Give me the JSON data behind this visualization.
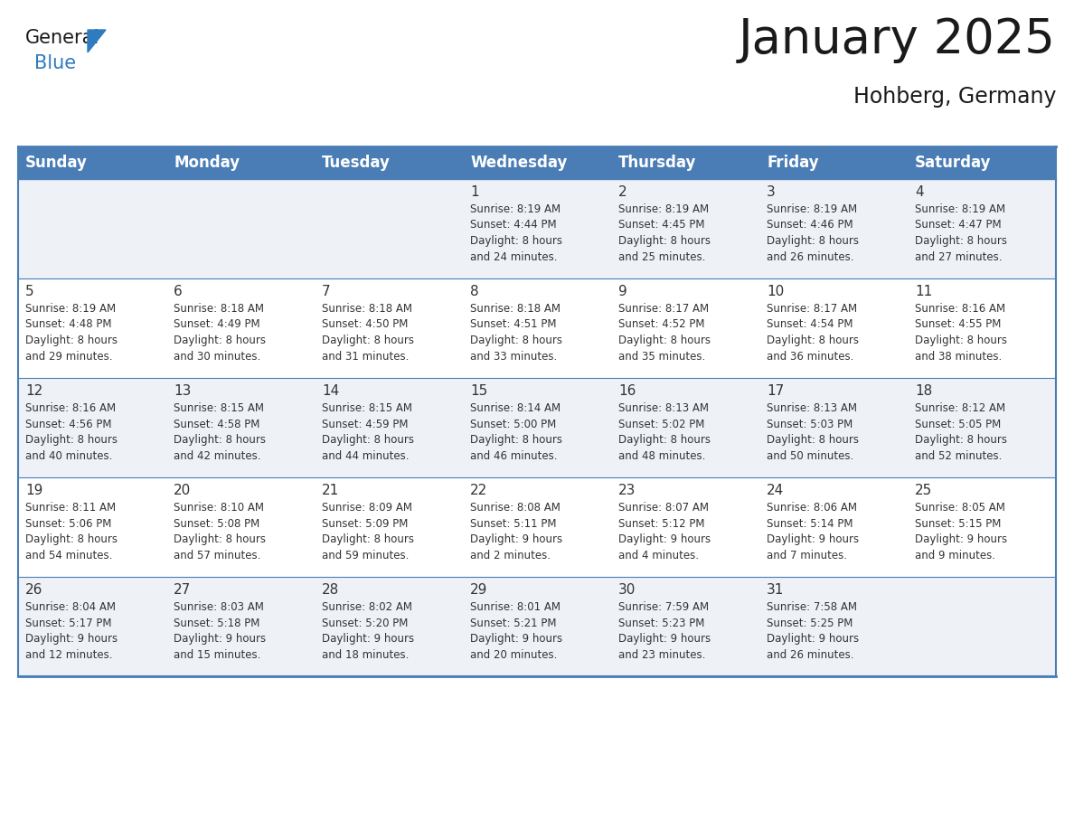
{
  "title": "January 2025",
  "subtitle": "Hohberg, Germany",
  "header_bg": "#4a7db5",
  "header_text_color": "#ffffff",
  "cell_bg_odd": "#eef2f7",
  "cell_bg_even": "#ffffff",
  "border_color": "#4a7db5",
  "text_color": "#333333",
  "days_of_week": [
    "Sunday",
    "Monday",
    "Tuesday",
    "Wednesday",
    "Thursday",
    "Friday",
    "Saturday"
  ],
  "calendar_data": [
    [
      {
        "day": "",
        "info": ""
      },
      {
        "day": "",
        "info": ""
      },
      {
        "day": "",
        "info": ""
      },
      {
        "day": "1",
        "info": "Sunrise: 8:19 AM\nSunset: 4:44 PM\nDaylight: 8 hours\nand 24 minutes."
      },
      {
        "day": "2",
        "info": "Sunrise: 8:19 AM\nSunset: 4:45 PM\nDaylight: 8 hours\nand 25 minutes."
      },
      {
        "day": "3",
        "info": "Sunrise: 8:19 AM\nSunset: 4:46 PM\nDaylight: 8 hours\nand 26 minutes."
      },
      {
        "day": "4",
        "info": "Sunrise: 8:19 AM\nSunset: 4:47 PM\nDaylight: 8 hours\nand 27 minutes."
      }
    ],
    [
      {
        "day": "5",
        "info": "Sunrise: 8:19 AM\nSunset: 4:48 PM\nDaylight: 8 hours\nand 29 minutes."
      },
      {
        "day": "6",
        "info": "Sunrise: 8:18 AM\nSunset: 4:49 PM\nDaylight: 8 hours\nand 30 minutes."
      },
      {
        "day": "7",
        "info": "Sunrise: 8:18 AM\nSunset: 4:50 PM\nDaylight: 8 hours\nand 31 minutes."
      },
      {
        "day": "8",
        "info": "Sunrise: 8:18 AM\nSunset: 4:51 PM\nDaylight: 8 hours\nand 33 minutes."
      },
      {
        "day": "9",
        "info": "Sunrise: 8:17 AM\nSunset: 4:52 PM\nDaylight: 8 hours\nand 35 minutes."
      },
      {
        "day": "10",
        "info": "Sunrise: 8:17 AM\nSunset: 4:54 PM\nDaylight: 8 hours\nand 36 minutes."
      },
      {
        "day": "11",
        "info": "Sunrise: 8:16 AM\nSunset: 4:55 PM\nDaylight: 8 hours\nand 38 minutes."
      }
    ],
    [
      {
        "day": "12",
        "info": "Sunrise: 8:16 AM\nSunset: 4:56 PM\nDaylight: 8 hours\nand 40 minutes."
      },
      {
        "day": "13",
        "info": "Sunrise: 8:15 AM\nSunset: 4:58 PM\nDaylight: 8 hours\nand 42 minutes."
      },
      {
        "day": "14",
        "info": "Sunrise: 8:15 AM\nSunset: 4:59 PM\nDaylight: 8 hours\nand 44 minutes."
      },
      {
        "day": "15",
        "info": "Sunrise: 8:14 AM\nSunset: 5:00 PM\nDaylight: 8 hours\nand 46 minutes."
      },
      {
        "day": "16",
        "info": "Sunrise: 8:13 AM\nSunset: 5:02 PM\nDaylight: 8 hours\nand 48 minutes."
      },
      {
        "day": "17",
        "info": "Sunrise: 8:13 AM\nSunset: 5:03 PM\nDaylight: 8 hours\nand 50 minutes."
      },
      {
        "day": "18",
        "info": "Sunrise: 8:12 AM\nSunset: 5:05 PM\nDaylight: 8 hours\nand 52 minutes."
      }
    ],
    [
      {
        "day": "19",
        "info": "Sunrise: 8:11 AM\nSunset: 5:06 PM\nDaylight: 8 hours\nand 54 minutes."
      },
      {
        "day": "20",
        "info": "Sunrise: 8:10 AM\nSunset: 5:08 PM\nDaylight: 8 hours\nand 57 minutes."
      },
      {
        "day": "21",
        "info": "Sunrise: 8:09 AM\nSunset: 5:09 PM\nDaylight: 8 hours\nand 59 minutes."
      },
      {
        "day": "22",
        "info": "Sunrise: 8:08 AM\nSunset: 5:11 PM\nDaylight: 9 hours\nand 2 minutes."
      },
      {
        "day": "23",
        "info": "Sunrise: 8:07 AM\nSunset: 5:12 PM\nDaylight: 9 hours\nand 4 minutes."
      },
      {
        "day": "24",
        "info": "Sunrise: 8:06 AM\nSunset: 5:14 PM\nDaylight: 9 hours\nand 7 minutes."
      },
      {
        "day": "25",
        "info": "Sunrise: 8:05 AM\nSunset: 5:15 PM\nDaylight: 9 hours\nand 9 minutes."
      }
    ],
    [
      {
        "day": "26",
        "info": "Sunrise: 8:04 AM\nSunset: 5:17 PM\nDaylight: 9 hours\nand 12 minutes."
      },
      {
        "day": "27",
        "info": "Sunrise: 8:03 AM\nSunset: 5:18 PM\nDaylight: 9 hours\nand 15 minutes."
      },
      {
        "day": "28",
        "info": "Sunrise: 8:02 AM\nSunset: 5:20 PM\nDaylight: 9 hours\nand 18 minutes."
      },
      {
        "day": "29",
        "info": "Sunrise: 8:01 AM\nSunset: 5:21 PM\nDaylight: 9 hours\nand 20 minutes."
      },
      {
        "day": "30",
        "info": "Sunrise: 7:59 AM\nSunset: 5:23 PM\nDaylight: 9 hours\nand 23 minutes."
      },
      {
        "day": "31",
        "info": "Sunrise: 7:58 AM\nSunset: 5:25 PM\nDaylight: 9 hours\nand 26 minutes."
      },
      {
        "day": "",
        "info": ""
      }
    ]
  ],
  "logo_general_color": "#1a1a1a",
  "logo_blue_color": "#2e7bbf",
  "title_fontsize": 38,
  "subtitle_fontsize": 17,
  "header_fontsize": 12,
  "day_num_fontsize": 11,
  "info_fontsize": 8.5
}
